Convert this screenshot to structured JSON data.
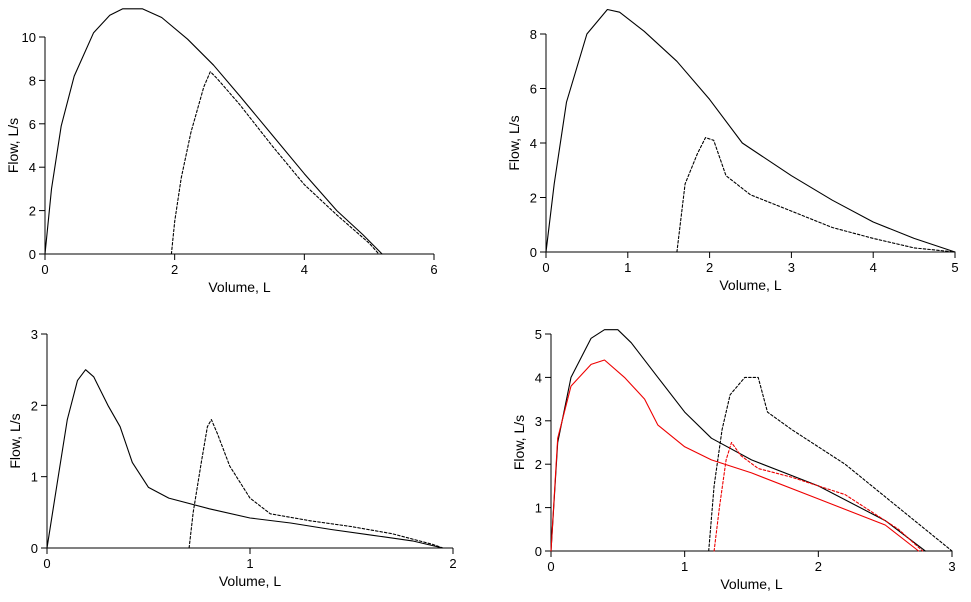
{
  "chart_data": [
    {
      "id": "A",
      "type": "line",
      "xlabel": "Volume, L",
      "ylabel": "Flow, L/s",
      "xlim": [
        0,
        6
      ],
      "ylim": [
        0,
        10
      ],
      "xticks": [
        0,
        2,
        4,
        6
      ],
      "yticks": [
        0,
        2,
        4,
        6,
        8,
        10
      ],
      "grid": false,
      "series": [
        {
          "style": "solid",
          "color": "#000000",
          "points": [
            [
              0,
              0
            ],
            [
              0.1,
              3
            ],
            [
              0.25,
              5.9
            ],
            [
              0.45,
              8.2
            ],
            [
              0.75,
              10.2
            ],
            [
              1.0,
              11.0
            ],
            [
              1.2,
              11.3
            ],
            [
              1.5,
              11.3
            ],
            [
              1.8,
              10.9
            ],
            [
              2.2,
              9.9
            ],
            [
              2.6,
              8.7
            ],
            [
              3.0,
              7.3
            ],
            [
              3.5,
              5.5
            ],
            [
              4.0,
              3.7
            ],
            [
              4.5,
              2.0
            ],
            [
              4.9,
              0.9
            ],
            [
              5.2,
              0
            ]
          ]
        },
        {
          "style": "dashed",
          "color": "#000000",
          "points": [
            [
              1.95,
              0
            ],
            [
              2.0,
              1.5
            ],
            [
              2.1,
              3.5
            ],
            [
              2.25,
              5.6
            ],
            [
              2.45,
              7.7
            ],
            [
              2.55,
              8.4
            ],
            [
              2.65,
              8.1
            ],
            [
              3.0,
              6.9
            ],
            [
              3.5,
              5.0
            ],
            [
              4.0,
              3.2
            ],
            [
              4.5,
              1.8
            ],
            [
              5.0,
              0.5
            ],
            [
              5.15,
              0
            ]
          ]
        }
      ]
    },
    {
      "id": "B",
      "type": "line",
      "xlabel": "Volume, L",
      "ylabel": "Flow, L/s",
      "xlim": [
        0,
        5
      ],
      "ylim": [
        0,
        8
      ],
      "xticks": [
        0,
        1,
        2,
        3,
        4,
        5
      ],
      "yticks": [
        0,
        2,
        4,
        6,
        8
      ],
      "grid": false,
      "series": [
        {
          "style": "solid",
          "color": "#000000",
          "points": [
            [
              0,
              0
            ],
            [
              0.1,
              2.5
            ],
            [
              0.25,
              5.5
            ],
            [
              0.5,
              8.0
            ],
            [
              0.75,
              8.9
            ],
            [
              0.9,
              8.8
            ],
            [
              1.2,
              8.1
            ],
            [
              1.6,
              7.0
            ],
            [
              2.0,
              5.6
            ],
            [
              2.4,
              4.0
            ],
            [
              3.0,
              2.8
            ],
            [
              3.5,
              1.9
            ],
            [
              4.0,
              1.1
            ],
            [
              4.5,
              0.5
            ],
            [
              5.0,
              0
            ]
          ]
        },
        {
          "style": "dashed",
          "color": "#000000",
          "points": [
            [
              1.6,
              0
            ],
            [
              1.7,
              2.5
            ],
            [
              1.85,
              3.6
            ],
            [
              1.95,
              4.2
            ],
            [
              2.05,
              4.1
            ],
            [
              2.2,
              2.8
            ],
            [
              2.5,
              2.1
            ],
            [
              3.0,
              1.5
            ],
            [
              3.5,
              0.9
            ],
            [
              4.0,
              0.5
            ],
            [
              4.5,
              0.15
            ],
            [
              5.0,
              0
            ]
          ]
        }
      ]
    },
    {
      "id": "C",
      "type": "line",
      "xlabel": "Volume, L",
      "ylabel": "Flow, L/s",
      "xlim": [
        0,
        2
      ],
      "ylim": [
        0,
        3
      ],
      "xticks": [
        0,
        1,
        2
      ],
      "yticks": [
        0,
        1,
        2,
        3
      ],
      "grid": false,
      "series": [
        {
          "style": "solid",
          "color": "#000000",
          "points": [
            [
              0,
              0
            ],
            [
              0.05,
              0.9
            ],
            [
              0.1,
              1.8
            ],
            [
              0.15,
              2.35
            ],
            [
              0.19,
              2.5
            ],
            [
              0.23,
              2.4
            ],
            [
              0.3,
              2.0
            ],
            [
              0.36,
              1.7
            ],
            [
              0.42,
              1.2
            ],
            [
              0.5,
              0.85
            ],
            [
              0.6,
              0.7
            ],
            [
              0.8,
              0.55
            ],
            [
              1.0,
              0.42
            ],
            [
              1.2,
              0.35
            ],
            [
              1.4,
              0.26
            ],
            [
              1.6,
              0.18
            ],
            [
              1.8,
              0.1
            ],
            [
              1.95,
              0
            ]
          ]
        },
        {
          "style": "dashed",
          "color": "#000000",
          "points": [
            [
              0.7,
              0
            ],
            [
              0.72,
              0.5
            ],
            [
              0.76,
              1.2
            ],
            [
              0.79,
              1.7
            ],
            [
              0.81,
              1.8
            ],
            [
              0.84,
              1.6
            ],
            [
              0.9,
              1.15
            ],
            [
              1.0,
              0.7
            ],
            [
              1.1,
              0.48
            ],
            [
              1.3,
              0.38
            ],
            [
              1.5,
              0.3
            ],
            [
              1.7,
              0.2
            ],
            [
              1.9,
              0.05
            ],
            [
              1.95,
              0
            ]
          ]
        }
      ]
    },
    {
      "id": "D",
      "type": "line",
      "xlabel": "Volume, L",
      "ylabel": "Flow, L/s",
      "xlim": [
        0,
        3
      ],
      "ylim": [
        0,
        5
      ],
      "xticks": [
        0,
        1,
        2,
        3
      ],
      "yticks": [
        0,
        1,
        2,
        3,
        4,
        5
      ],
      "grid": false,
      "series": [
        {
          "style": "solid",
          "color": "#000000",
          "points": [
            [
              0,
              0
            ],
            [
              0.05,
              2.5
            ],
            [
              0.15,
              4.0
            ],
            [
              0.3,
              4.9
            ],
            [
              0.4,
              5.1
            ],
            [
              0.5,
              5.1
            ],
            [
              0.6,
              4.8
            ],
            [
              0.8,
              4.0
            ],
            [
              1.0,
              3.2
            ],
            [
              1.2,
              2.6
            ],
            [
              1.5,
              2.1
            ],
            [
              2.0,
              1.5
            ],
            [
              2.5,
              0.7
            ],
            [
              2.8,
              0
            ]
          ]
        },
        {
          "style": "dashed",
          "color": "#000000",
          "points": [
            [
              1.18,
              0
            ],
            [
              1.22,
              1.5
            ],
            [
              1.28,
              2.8
            ],
            [
              1.34,
              3.6
            ],
            [
              1.45,
              4.0
            ],
            [
              1.55,
              4.0
            ],
            [
              1.62,
              3.2
            ],
            [
              1.8,
              2.8
            ],
            [
              2.2,
              2.0
            ],
            [
              2.6,
              1.0
            ],
            [
              3.0,
              0
            ]
          ]
        },
        {
          "style": "solid",
          "color": "#ee0000",
          "points": [
            [
              0,
              0
            ],
            [
              0.05,
              2.6
            ],
            [
              0.15,
              3.8
            ],
            [
              0.3,
              4.3
            ],
            [
              0.4,
              4.4
            ],
            [
              0.55,
              4.0
            ],
            [
              0.7,
              3.5
            ],
            [
              0.8,
              2.9
            ],
            [
              1.0,
              2.4
            ],
            [
              1.2,
              2.1
            ],
            [
              1.5,
              1.8
            ],
            [
              2.0,
              1.2
            ],
            [
              2.5,
              0.6
            ],
            [
              2.75,
              0
            ]
          ]
        },
        {
          "style": "dashed",
          "color": "#ee0000",
          "points": [
            [
              1.22,
              0
            ],
            [
              1.26,
              1.0
            ],
            [
              1.31,
              2.1
            ],
            [
              1.35,
              2.5
            ],
            [
              1.42,
              2.2
            ],
            [
              1.55,
              1.9
            ],
            [
              1.8,
              1.7
            ],
            [
              2.2,
              1.3
            ],
            [
              2.6,
              0.5
            ],
            [
              2.78,
              0
            ]
          ]
        }
      ]
    }
  ]
}
